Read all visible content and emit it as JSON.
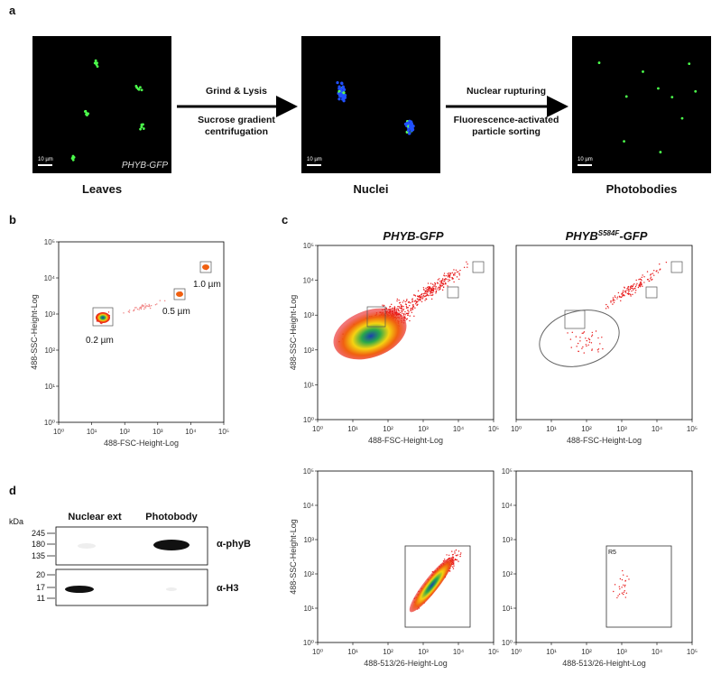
{
  "panel_a": {
    "label": "a",
    "images": [
      {
        "caption": "Leaves",
        "inset": "PHYB-GFP",
        "scale": "10 µm"
      },
      {
        "caption": "Nuclei",
        "scale": "10 µm"
      },
      {
        "caption": "Photobodies",
        "scale": "10 µm"
      }
    ],
    "steps": [
      [
        "Grind & Lysis",
        "Sucrose gradient",
        "centrifugation"
      ],
      [
        "Nuclear rupturing",
        "Fluorescence-activated",
        "particle sorting"
      ]
    ]
  },
  "panel_b": {
    "label": "b",
    "plot": {
      "xlabel": "488-FSC-Height-Log",
      "ylabel": "488-SSC-Height-Log",
      "xticks": [
        "10⁰",
        "10¹",
        "10²",
        "10³",
        "10⁴",
        "10⁵"
      ],
      "yticks": [
        "10⁰",
        "10¹",
        "10²",
        "10³",
        "10⁴",
        "10⁵"
      ]
    },
    "annotations": [
      "0.2 µm",
      "0.5 µm",
      "1.0 µm"
    ]
  },
  "panel_c": {
    "label": "c",
    "titles": [
      {
        "base": "PHYB-GFP"
      },
      {
        "base": "PHYB",
        "sup": "S584F",
        "suffix": "-GFP"
      }
    ],
    "plots": [
      {
        "xlabel": "488-FSC-Height-Log",
        "ylabel": "488-SSC-Height-Log",
        "xticks": [
          "10⁰",
          "10¹",
          "10²",
          "10³",
          "10⁴",
          "10⁵"
        ],
        "yticks": [
          "10⁰",
          "10¹",
          "10²",
          "10³",
          "10⁴",
          "10⁵"
        ]
      },
      {
        "xlabel": "488-FSC-Height-Log",
        "xticks": [
          "10⁰",
          "10¹",
          "10²",
          "10³",
          "10⁴",
          "10⁵"
        ]
      },
      {
        "xlabel": "488-513/26-Height-Log",
        "ylabel": "488-SSC-Height-Log",
        "xticks": [
          "10⁰",
          "10¹",
          "10²",
          "10³",
          "10⁴",
          "10⁵"
        ],
        "yticks": [
          "10⁰",
          "10¹",
          "10²",
          "10³",
          "10⁴",
          "10⁵"
        ]
      },
      {
        "xlabel": "488-513/26-Height-Log",
        "xticks": [
          "10⁰",
          "10¹",
          "10²",
          "10³",
          "10⁴",
          "10⁵"
        ],
        "yticks": [
          "10⁰",
          "10¹",
          "10²",
          "10³",
          "10⁴",
          "10⁵"
        ],
        "gate": "R5"
      }
    ]
  },
  "panel_d": {
    "label": "d",
    "unit": "kDa",
    "columns": [
      "Nuclear ext",
      "Photobody"
    ],
    "markers": [
      "245",
      "180",
      "135",
      "20",
      "17",
      "11"
    ],
    "antibodies": [
      "α-phyB",
      "α-H3"
    ]
  }
}
